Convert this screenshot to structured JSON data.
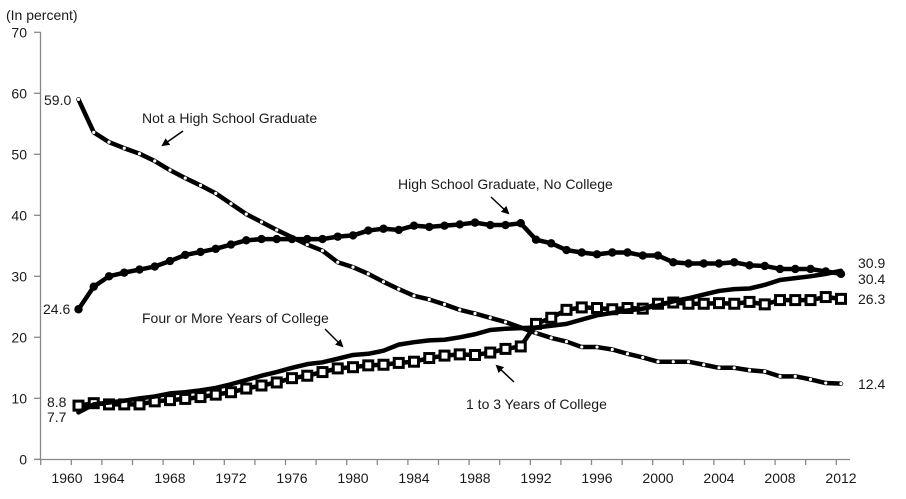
{
  "chart_data": {
    "type": "line",
    "title": "",
    "ylabel": "(In percent)",
    "xlabel": "",
    "ylim": [
      0,
      70
    ],
    "yticks": [
      "0",
      "10",
      "20",
      "30",
      "40",
      "50",
      "60",
      "70"
    ],
    "xtick_labels": [
      "1960",
      "1964",
      "1968",
      "1972",
      "1976",
      "1980",
      "1984",
      "1988",
      "1992",
      "1996",
      "2000",
      "2004",
      "2008",
      "2012"
    ],
    "grid": false,
    "legend": "none",
    "x": [
      1962,
      1963,
      1964,
      1965,
      1966,
      1967,
      1968,
      1969,
      1970,
      1971,
      1972,
      1973,
      1974,
      1975,
      1976,
      1977,
      1978,
      1979,
      1980,
      1981,
      1982,
      1983,
      1984,
      1985,
      1986,
      1987,
      1988,
      1989,
      1990,
      1991,
      1992,
      1993,
      1994,
      1995,
      1996,
      1997,
      1998,
      1999,
      2000,
      2001,
      2002,
      2003,
      2004,
      2005,
      2006,
      2007,
      2008,
      2009,
      2010,
      2011,
      2012
    ],
    "series": [
      {
        "name": "Not a High School Graduate",
        "marker": "small-open-circle",
        "values": [
          59.0,
          53.6,
          52.0,
          51.0,
          50.1,
          48.9,
          47.4,
          46.1,
          44.9,
          43.6,
          41.9,
          40.2,
          38.9,
          37.6,
          36.4,
          35.2,
          34.2,
          32.3,
          31.5,
          30.4,
          29.1,
          27.9,
          26.8,
          26.2,
          25.4,
          24.5,
          23.9,
          23.2,
          22.5,
          21.6,
          20.7,
          19.9,
          19.3,
          18.4,
          18.4,
          18.0,
          17.3,
          16.7,
          16.0,
          16.0,
          16.0,
          15.5,
          15.0,
          15.0,
          14.6,
          14.4,
          13.6,
          13.6,
          13.1,
          12.5,
          12.4
        ]
      },
      {
        "name": "High School Graduate, No College",
        "marker": "filled-circle",
        "values": [
          24.6,
          28.3,
          30.0,
          30.6,
          31.1,
          31.6,
          32.5,
          33.5,
          34.0,
          34.5,
          35.2,
          35.9,
          36.1,
          36.1,
          36.1,
          36.1,
          36.1,
          36.5,
          36.7,
          37.5,
          37.8,
          37.6,
          38.3,
          38.1,
          38.3,
          38.5,
          38.8,
          38.4,
          38.4,
          38.7,
          36.0,
          35.4,
          34.3,
          33.9,
          33.6,
          33.9,
          33.9,
          33.4,
          33.4,
          32.3,
          32.1,
          32.1,
          32.1,
          32.3,
          31.8,
          31.7,
          31.2,
          31.2,
          31.2,
          30.8,
          30.4
        ]
      },
      {
        "name": "1 to 3 Years of College",
        "marker": "open-square",
        "values": [
          8.8,
          9.2,
          9.0,
          9.0,
          9.0,
          9.5,
          9.7,
          9.9,
          10.2,
          10.6,
          11.0,
          11.6,
          12.1,
          12.6,
          13.3,
          13.7,
          14.3,
          14.9,
          15.1,
          15.4,
          15.5,
          15.8,
          16.0,
          16.6,
          17.0,
          17.2,
          17.1,
          17.5,
          18.1,
          18.5,
          22.2,
          23.2,
          24.5,
          24.9,
          24.8,
          24.6,
          24.8,
          24.7,
          25.5,
          25.7,
          25.5,
          25.5,
          25.6,
          25.5,
          25.8,
          25.4,
          26.1,
          26.1,
          26.1,
          26.6,
          26.3
        ]
      },
      {
        "name": "Four or More Years of College",
        "marker": "none",
        "values": [
          7.7,
          9.0,
          9.3,
          9.6,
          10.0,
          10.3,
          10.8,
          11.0,
          11.3,
          11.7,
          12.3,
          13.0,
          13.7,
          14.3,
          15.0,
          15.6,
          15.9,
          16.5,
          17.1,
          17.3,
          17.8,
          18.8,
          19.2,
          19.5,
          19.6,
          20.0,
          20.5,
          21.2,
          21.4,
          21.5,
          21.6,
          21.9,
          22.2,
          22.9,
          23.6,
          24.0,
          24.4,
          24.7,
          25.2,
          25.9,
          26.4,
          27.0,
          27.6,
          27.9,
          28.0,
          28.6,
          29.4,
          29.7,
          30.0,
          30.4,
          30.9
        ]
      }
    ],
    "annotations": {
      "start_labels": [
        "59.0",
        "24.6",
        "8.8",
        "7.7"
      ],
      "end_labels": [
        "30.9",
        "30.4",
        "26.3",
        "12.4"
      ],
      "series_labels": [
        "Not a High School Graduate",
        "High School Graduate, No College",
        "Four or More Years of College",
        "1 to 3 Years of College"
      ]
    },
    "colors": {
      "line": "#000000",
      "axis": "#888888",
      "text": "#1a1a1a"
    }
  }
}
